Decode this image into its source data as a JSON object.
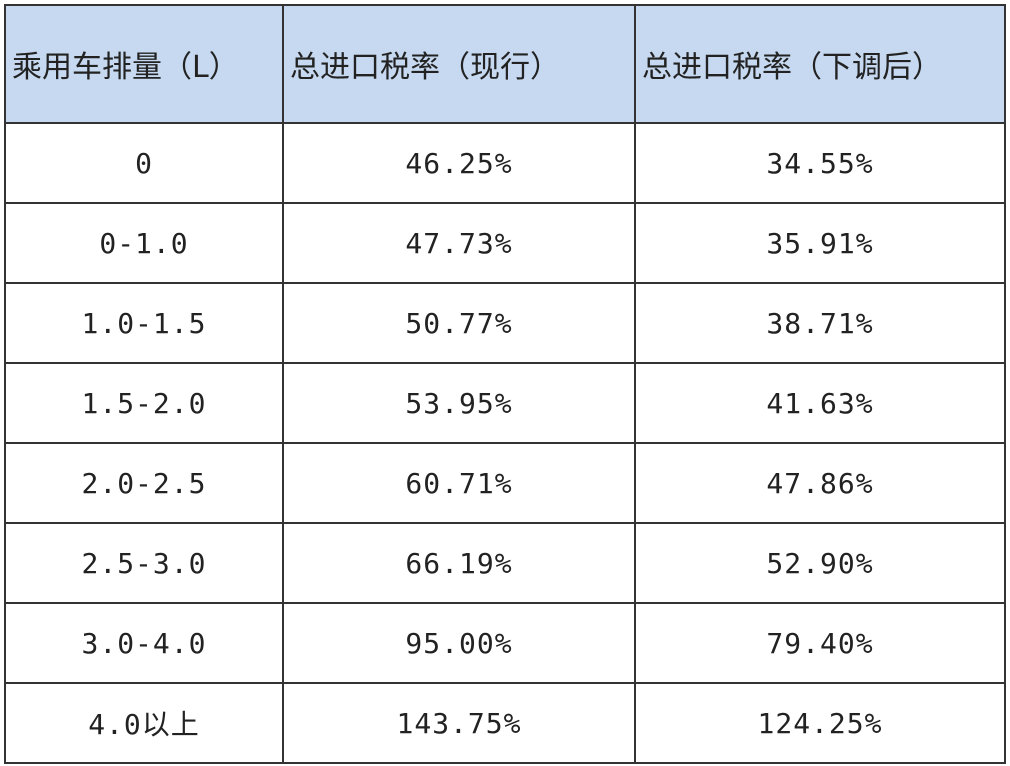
{
  "table": {
    "header": [
      "乘用车排量（L）",
      "总进口税率（现行）",
      "总进口税率（下调后）"
    ],
    "rows": [
      [
        "0",
        "46.25%",
        "34.55%"
      ],
      [
        "0-1.0",
        "47.73%",
        "35.91%"
      ],
      [
        "1.0-1.5",
        "50.77%",
        "38.71%"
      ],
      [
        "1.5-2.0",
        "53.95%",
        "41.63%"
      ],
      [
        "2.0-2.5",
        "60.71%",
        "47.86%"
      ],
      [
        "2.5-3.0",
        "66.19%",
        "52.90%"
      ],
      [
        "3.0-4.0",
        "95.00%",
        "79.40%"
      ],
      [
        "4.0以上",
        "143.75%",
        "124.25%"
      ]
    ]
  }
}
